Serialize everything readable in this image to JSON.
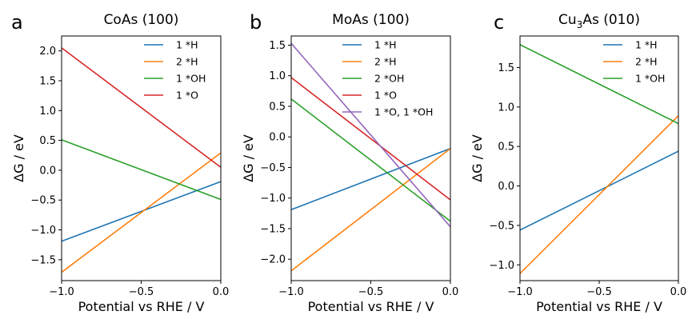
{
  "chart_data": [
    {
      "type": "line",
      "panel_letter": "a",
      "title_main": "CoAs (100)",
      "title_sub": "",
      "title_rest": "",
      "xlabel": "Potential vs RHE / V",
      "ylabel": "ΔG / eV",
      "xlim": [
        -1.0,
        0.0
      ],
      "ylim": [
        -1.85,
        2.25
      ],
      "xticks": [
        -1.0,
        -0.5,
        0.0
      ],
      "xtick_labels": [
        "−1.0",
        "−0.5",
        "0.0"
      ],
      "yticks": [
        -1.5,
        -1.0,
        -0.5,
        0.0,
        0.5,
        1.0,
        1.5,
        2.0
      ],
      "ytick_labels": [
        "−1.5",
        "−1.0",
        "−0.5",
        "0.0",
        "0.5",
        "1.0",
        "1.5",
        "2.0"
      ],
      "legend_position": "top-right",
      "series": [
        {
          "name": "1 *H",
          "color": "#1f77b4",
          "x": [
            -1.0,
            0.0
          ],
          "y": [
            -1.19,
            -0.19
          ]
        },
        {
          "name": "2 *H",
          "color": "#ff7f0e",
          "x": [
            -1.0,
            0.0
          ],
          "y": [
            -1.71,
            0.29
          ]
        },
        {
          "name": "1 *OH",
          "color": "#2ca02c",
          "x": [
            -1.0,
            0.0
          ],
          "y": [
            0.51,
            -0.49
          ]
        },
        {
          "name": "1 *O",
          "color": "#d62728",
          "x": [
            -1.0,
            0.0
          ],
          "y": [
            2.05,
            0.05
          ]
        }
      ]
    },
    {
      "type": "line",
      "panel_letter": "b",
      "title_main": "MoAs (100)",
      "title_sub": "",
      "title_rest": "",
      "xlabel": "Potential vs RHE / V",
      "ylabel": "ΔG / eV",
      "xlim": [
        -1.0,
        0.0
      ],
      "ylim": [
        -2.35,
        1.65
      ],
      "xticks": [
        -1.0,
        -0.5,
        0.0
      ],
      "xtick_labels": [
        "−1.0",
        "−0.5",
        "0.0"
      ],
      "yticks": [
        -2.0,
        -1.5,
        -1.0,
        -0.5,
        0.0,
        0.5,
        1.0,
        1.5
      ],
      "ytick_labels": [
        "−2.0",
        "−1.5",
        "−1.0",
        "−0.5",
        "0.0",
        "0.5",
        "1.0",
        "1.5"
      ],
      "legend_position": "top-right",
      "series": [
        {
          "name": "1 *H",
          "color": "#1f77b4",
          "x": [
            -1.0,
            0.0
          ],
          "y": [
            -1.19,
            -0.19
          ]
        },
        {
          "name": "2 *H",
          "color": "#ff7f0e",
          "x": [
            -1.0,
            0.0
          ],
          "y": [
            -2.19,
            -0.19
          ]
        },
        {
          "name": "2 *OH",
          "color": "#2ca02c",
          "x": [
            -1.0,
            0.0
          ],
          "y": [
            0.62,
            -1.38
          ]
        },
        {
          "name": "1 *O",
          "color": "#d62728",
          "x": [
            -1.0,
            0.0
          ],
          "y": [
            0.97,
            -1.03
          ]
        },
        {
          "name": "1 *O, 1 *OH",
          "color": "#9467bd",
          "x": [
            -1.0,
            0.0
          ],
          "y": [
            1.53,
            -1.47
          ]
        }
      ]
    },
    {
      "type": "line",
      "panel_letter": "c",
      "title_main": "Cu",
      "title_sub": "3",
      "title_rest": "As (010)",
      "xlabel": "Potential vs RHE / V",
      "ylabel": "ΔG / eV",
      "xlim": [
        -1.0,
        0.0
      ],
      "ylim": [
        -1.2,
        1.9
      ],
      "xticks": [
        -1.0,
        -0.5,
        0.0
      ],
      "xtick_labels": [
        "−1.0",
        "−0.5",
        "0.0"
      ],
      "yticks": [
        -1.0,
        -0.5,
        0.0,
        0.5,
        1.0,
        1.5
      ],
      "ytick_labels": [
        "−1.0",
        "−0.5",
        "0.0",
        "0.5",
        "1.0",
        "1.5"
      ],
      "legend_position": "top-right",
      "series": [
        {
          "name": "1 *H",
          "color": "#1f77b4",
          "x": [
            -1.0,
            0.0
          ],
          "y": [
            -0.56,
            0.44
          ]
        },
        {
          "name": "2 *H",
          "color": "#ff7f0e",
          "x": [
            -1.0,
            0.0
          ],
          "y": [
            -1.11,
            0.89
          ]
        },
        {
          "name": "1 *OH",
          "color": "#2ca02c",
          "x": [
            -1.0,
            0.0
          ],
          "y": [
            1.79,
            0.79
          ]
        }
      ]
    }
  ]
}
